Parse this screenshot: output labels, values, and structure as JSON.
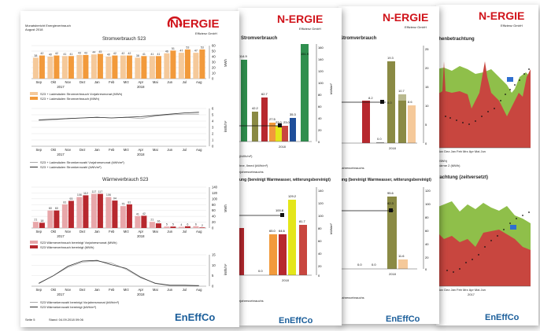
{
  "colors": {
    "orange": "#f29a3b",
    "light_orange": "#f5c99a",
    "red": "#b7282e",
    "pink": "#e8a7aa",
    "olive": "#8a8a44",
    "green": "#2f8f4e",
    "yellow": "#e4e61a",
    "blue": "#1f4e9a",
    "area_red": "#c8463f",
    "area_green": "#8fbf4a"
  },
  "page1": {
    "header": [
      "Monatsbericht Energieverbrauch",
      "August 2018"
    ],
    "logo_text": "N-ERGIE",
    "logo_sub": "Effizienz GmbH",
    "footer_left": "Seite 5",
    "footer_mid": "Stand: 04.09.2018 09:06",
    "footer_brand": "EnEffCo",
    "chart1": {
      "title": "Stromverbrauch S23",
      "ylabel": "MWh",
      "months": [
        "Sep",
        "Okt",
        "Nov",
        "Dez",
        "Jan",
        "Feb",
        "Mrz",
        "Apr",
        "Mai",
        "Jun",
        "Jul",
        "Aug"
      ],
      "years": [
        "2017",
        "2018"
      ],
      "prev": [
        38,
        40,
        41,
        43,
        44,
        40,
        42,
        38,
        41,
        46,
        47,
        47
      ],
      "curr": [
        42,
        42,
        41,
        43,
        45,
        42,
        42,
        41,
        41,
        51,
        53,
        53
      ],
      "legend": [
        "S23 + Ladesäulen Stromverbrauch Vorjahresmonat (MWh)",
        "S23 + Ladesäulen Stromverbrauch (MWh)"
      ],
      "yticks": [
        "60",
        "50",
        "40",
        "30",
        "20",
        "10",
        "0"
      ]
    },
    "chart2": {
      "ylabel": "kWh/m²",
      "prev": [
        4.1,
        4.2,
        4.4,
        4.5,
        4.6,
        4.5,
        4.6,
        4.4,
        4.8,
        5.0,
        5.1,
        5.1
      ],
      "curr": [
        4.2,
        4.3,
        4.4,
        4.5,
        4.6,
        4.5,
        4.6,
        4.7,
        4.9,
        5.1,
        5.3,
        5.4
      ],
      "legend": [
        "S23 + Ladesäulen Stromkennzahl Vorjahresmonat (kWh/m²)",
        "S23 + Ladesäulen Stromkennzahl (kWh/m²)"
      ],
      "yticks": [
        "6",
        "5",
        "4",
        "3",
        "2",
        "1",
        "0"
      ]
    },
    "chart3": {
      "title": "Wärmeverbrauch S23",
      "ylabel": "MWh",
      "prev": [
        21,
        60,
        81,
        106,
        117,
        106,
        75,
        41,
        21,
        5,
        4,
        6
      ],
      "curr": [
        18,
        60,
        93,
        112,
        117,
        94,
        81,
        42,
        16,
        5,
        6,
        2
      ],
      "legend": [
        "S23 Wärmeverbrauch bereinigt Vorjahresmonat (MWh)",
        "S23 Wärmeverbrauch bereinigt (MWh)"
      ],
      "yticks": [
        "140",
        "120",
        "100",
        "80",
        "60",
        "40",
        "20",
        "0"
      ]
    },
    "chart4": {
      "ylabel": "kWh/m²",
      "prev": [
        1.5,
        5,
        9,
        11.5,
        12,
        11,
        8,
        4,
        1.5,
        0.5,
        0.5,
        0.4
      ],
      "curr": [
        1.3,
        5,
        9.5,
        12,
        12.3,
        10.2,
        8.5,
        4.3,
        1.3,
        0.4,
        0.4,
        0.2
      ],
      "legend": [
        "S23 Wärmekennzahl bereinigt Vorjahresmonat (kWh/m²)",
        "S23 Wärmekennzahl bereinigt (kWh/m²)"
      ],
      "yticks": [
        "15",
        "10",
        "5",
        "0"
      ]
    }
  },
  "page2": {
    "logo_text": "N-ERGIE",
    "logo_sub": "Effizienz GmbH",
    "title1": "Stromverbrauch",
    "title2": "ung (bereinigt Warmwasser, witterungsbereinigt)",
    "bar_values1": [
      "114.9",
      "42.2",
      "62.7",
      "27.5",
      "23.0",
      "23.0",
      "35.3",
      "151.9"
    ],
    "bar_values2": [
      "100.8",
      "129.2",
      "65.0",
      "64.6",
      "81.7",
      "0.0"
    ],
    "year": "2018",
    "footer_brand": "EnEffCo",
    "legend": [
      "(kWh/m²)",
      "hne, Ilmed (kWh/m²)",
      "rjahresvebrauchs",
      "rjahresvebrauchs"
    ],
    "yticks1": [
      "160",
      "140",
      "120",
      "100",
      "80",
      "60",
      "40",
      "20",
      "0"
    ],
    "yticks2": [
      "140",
      "120",
      "100",
      "80",
      "60",
      "40",
      "20",
      "0"
    ],
    "ylabel": "kWh/m²"
  },
  "page3": {
    "logo_text": "N-ERGIE",
    "logo_sub": "Effizienz GmbH",
    "title1": "Stromverbrauch",
    "title2": "ung (bereinigt Warmwasser, witterungsbereinigt)",
    "bar_values1": [
      "8.2",
      "0.0",
      "19.3",
      "8.0",
      "10.7",
      "8.6"
    ],
    "bar_values2": [
      "95.6",
      "82.3",
      "0.0",
      "0.0",
      "11.6"
    ],
    "year": "2018",
    "footer_brand": "EnEffCo",
    "legend": [
      "rjahresvebrauchs",
      "rjahresvebrauchs"
    ],
    "yticks1": [
      "25",
      "20",
      "15",
      "10",
      "5",
      "0"
    ],
    "yticks2": [
      "120",
      "100",
      "80",
      "60",
      "40",
      "20",
      "0"
    ],
    "ylabel": "kWh/m²"
  },
  "page4": {
    "logo_text": "N-ERGIE",
    "logo_sub": "Effizienz GmbH",
    "title1": "chenbetrachtung",
    "title2": "trachtung (zeitversetzt)",
    "months": "Nov  Dez  Jan  Feb  Mrz  Apr  Mai  Jun",
    "year": "2017",
    "footer_brand": "EnEffCo",
    "legend1": [
      "(MWh)",
      "wärme 2 (MWh)"
    ],
    "legend2": [
      "(MWh)",
      "wärme 2 (MWh)"
    ],
    "yticks": [
      "60",
      "50",
      "40",
      "30",
      "20",
      "10",
      "0"
    ],
    "yticks_r": [
      "25",
      "20",
      "15",
      "10",
      "5",
      "0",
      "-5",
      "-10"
    ],
    "ylabel": "MWh",
    "ylabel_r": "°C"
  }
}
